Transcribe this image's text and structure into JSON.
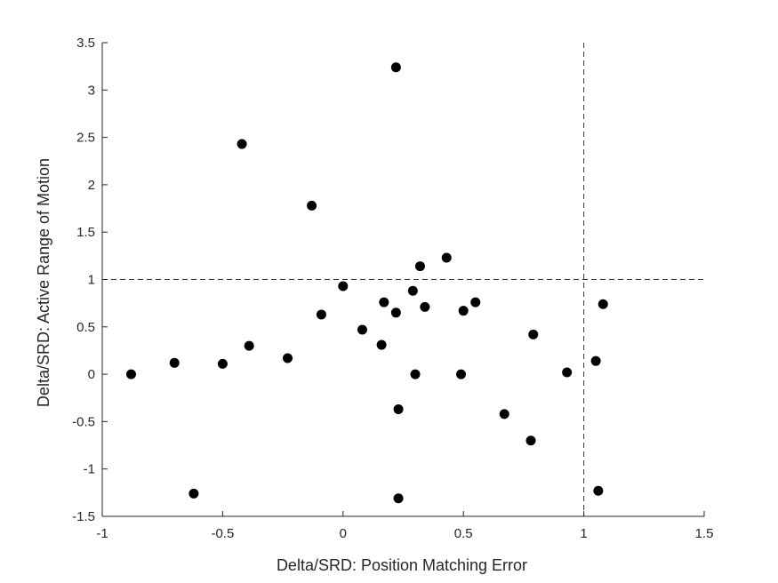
{
  "chart_data": {
    "type": "scatter",
    "xlabel": "Delta/SRD: Position Matching Error",
    "ylabel": "Delta/SRD: Active Range of Motion",
    "xlim": [
      -1,
      1.5
    ],
    "ylim": [
      -1.5,
      3.5
    ],
    "x_ticks": [
      -1,
      -0.5,
      0,
      0.5,
      1,
      1.5
    ],
    "x_tick_labels": [
      "-1",
      "-0.5",
      "0",
      "0.5",
      "1",
      "1.5"
    ],
    "y_ticks": [
      -1.5,
      -1,
      -0.5,
      0,
      0.5,
      1,
      1.5,
      2,
      2.5,
      3,
      3.5
    ],
    "y_tick_labels": [
      "-1.5",
      "-1",
      "-0.5",
      "0",
      "0.5",
      "1",
      "1.5",
      "2",
      "2.5",
      "3",
      "3.5"
    ],
    "grid": false,
    "reference_lines": [
      {
        "orientation": "vertical",
        "value": 1,
        "style": "dashed"
      },
      {
        "orientation": "horizontal",
        "value": 1,
        "style": "dashed"
      }
    ],
    "marker_color": "#000000",
    "points": [
      {
        "x": -0.88,
        "y": 0.0
      },
      {
        "x": -0.7,
        "y": 0.12
      },
      {
        "x": -0.62,
        "y": -1.26
      },
      {
        "x": -0.5,
        "y": 0.11
      },
      {
        "x": -0.42,
        "y": 2.43
      },
      {
        "x": -0.39,
        "y": 0.3
      },
      {
        "x": -0.23,
        "y": 0.17
      },
      {
        "x": -0.13,
        "y": 1.78
      },
      {
        "x": -0.09,
        "y": 0.63
      },
      {
        "x": 0.0,
        "y": 0.93
      },
      {
        "x": 0.08,
        "y": 0.47
      },
      {
        "x": 0.16,
        "y": 0.31
      },
      {
        "x": 0.17,
        "y": 0.76
      },
      {
        "x": 0.22,
        "y": 0.65
      },
      {
        "x": 0.22,
        "y": 3.24
      },
      {
        "x": 0.23,
        "y": -0.37
      },
      {
        "x": 0.23,
        "y": -1.31
      },
      {
        "x": 0.29,
        "y": 0.88
      },
      {
        "x": 0.3,
        "y": 0.0
      },
      {
        "x": 0.32,
        "y": 1.14
      },
      {
        "x": 0.34,
        "y": 0.71
      },
      {
        "x": 0.43,
        "y": 1.23
      },
      {
        "x": 0.49,
        "y": 0.0
      },
      {
        "x": 0.5,
        "y": 0.67
      },
      {
        "x": 0.55,
        "y": 0.76
      },
      {
        "x": 0.67,
        "y": -0.42
      },
      {
        "x": 0.78,
        "y": -0.7
      },
      {
        "x": 0.79,
        "y": 0.42
      },
      {
        "x": 0.93,
        "y": 0.02
      },
      {
        "x": 1.05,
        "y": 0.14
      },
      {
        "x": 1.06,
        "y": -1.23
      },
      {
        "x": 1.08,
        "y": 0.74
      }
    ]
  }
}
